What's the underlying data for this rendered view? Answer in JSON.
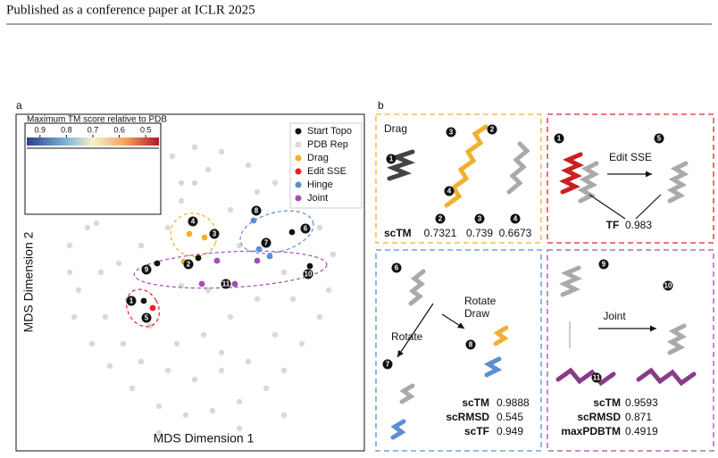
{
  "header": {
    "title": "Published as a conference paper at ICLR 2025"
  },
  "panel_a": {
    "label": "a",
    "colorbar": {
      "title": "Maximum TM score relative to PDB",
      "lim": [
        0.95,
        0.45
      ],
      "ticks": [
        0.9,
        0.8,
        0.7,
        0.6,
        0.5
      ]
    },
    "xlabel": "MDS Dimension 1",
    "ylabel": "MDS Dimension 2",
    "xlim": [
      0,
      390
    ],
    "ylim": [
      0,
      377
    ],
    "series": [
      {
        "name": "Start Topo",
        "color": "#111111",
        "points": [
          [
            143,
            168
          ],
          [
            204,
            216
          ],
          [
            158,
            210
          ],
          [
            329,
            207
          ],
          [
            309,
            245
          ]
        ]
      },
      {
        "name": "PDB Rep",
        "color": "#d9d9d9",
        "points": [
          [
            60,
            230
          ],
          [
            80,
            250
          ],
          [
            95,
            200
          ],
          [
            70,
            180
          ],
          [
            200,
            300
          ],
          [
            215,
            315
          ],
          [
            185,
            300
          ],
          [
            175,
            330
          ],
          [
            200,
            340
          ],
          [
            230,
            335
          ],
          [
            260,
            320
          ],
          [
            290,
            300
          ],
          [
            320,
            280
          ],
          [
            340,
            250
          ],
          [
            355,
            220
          ],
          [
            350,
            180
          ],
          [
            340,
            150
          ],
          [
            320,
            120
          ],
          [
            300,
            90
          ],
          [
            280,
            70
          ],
          [
            250,
            55
          ],
          [
            220,
            45
          ],
          [
            190,
            40
          ],
          [
            160,
            50
          ],
          [
            130,
            70
          ],
          [
            105,
            95
          ],
          [
            85,
            120
          ],
          [
            65,
            150
          ],
          [
            100,
            150
          ],
          [
            120,
            120
          ],
          [
            140,
            100
          ],
          [
            170,
            90
          ],
          [
            200,
            80
          ],
          [
            230,
            90
          ],
          [
            260,
            100
          ],
          [
            290,
            130
          ],
          [
            310,
            170
          ],
          [
            300,
            200
          ],
          [
            270,
            170
          ],
          [
            240,
            150
          ],
          [
            210,
            130
          ],
          [
            180,
            120
          ],
          [
            150,
            140
          ],
          [
            125,
            170
          ],
          [
            115,
            210
          ],
          [
            140,
            230
          ],
          [
            170,
            250
          ],
          [
            185,
            280
          ],
          [
            240,
            270
          ],
          [
            270,
            290
          ],
          [
            250,
            230
          ],
          [
            215,
            180
          ],
          [
            185,
            185
          ],
          [
            230,
            110
          ],
          [
            330,
            200
          ],
          [
            60,
            200
          ],
          [
            90,
            255
          ],
          [
            160,
            20
          ],
          [
            250,
            25
          ],
          [
            300,
            40
          ]
        ]
      },
      {
        "name": "Drag",
        "color": "#f0b030",
        "points": [
          [
            194,
            243
          ],
          [
            211,
            239
          ],
          [
            188,
            212
          ]
        ]
      },
      {
        "name": "Edit SSE",
        "color": "#e8202a",
        "points": [
          [
            153,
            160
          ]
        ]
      },
      {
        "name": "Hinge",
        "color": "#5b8fd0",
        "points": [
          [
            266,
            258
          ],
          [
            272,
            226
          ],
          [
            284,
            218
          ]
        ]
      },
      {
        "name": "Joint",
        "color": "#a050b0",
        "points": [
          [
            225,
            213
          ],
          [
            245,
            187
          ],
          [
            208,
            187
          ],
          [
            270,
            213
          ]
        ]
      }
    ],
    "markers": [
      "1",
      "2",
      "3",
      "4",
      "5",
      "6",
      "7",
      "8",
      "9",
      "10",
      "11"
    ]
  },
  "panel_b": {
    "label": "b",
    "drag": {
      "title": "Drag",
      "markers": [
        "1",
        "3",
        "2",
        "4"
      ],
      "metric": "scTM",
      "columns": [
        "2",
        "3",
        "4"
      ],
      "values": [
        0.7321,
        0.739,
        0.6673
      ]
    },
    "edit": {
      "title": "Edit SSE",
      "markers": [
        "1",
        "5"
      ],
      "metric": "TF",
      "value": 0.983
    },
    "hinge": {
      "rotate": "Rotate",
      "rotate_draw": [
        "Rotate",
        "Draw"
      ],
      "markers": [
        "6",
        "8",
        "7"
      ],
      "metrics": [
        [
          "scTM",
          0.9888
        ],
        [
          "scRMSD",
          0.545
        ],
        [
          "scTF",
          0.949
        ]
      ]
    },
    "joint": {
      "title": "Joint",
      "markers": [
        "9",
        "10",
        "11"
      ],
      "metrics": [
        [
          "scTM",
          0.9593
        ],
        [
          "scRMSD",
          0.871
        ],
        [
          "maxPDBTM",
          0.4919
        ]
      ]
    }
  }
}
